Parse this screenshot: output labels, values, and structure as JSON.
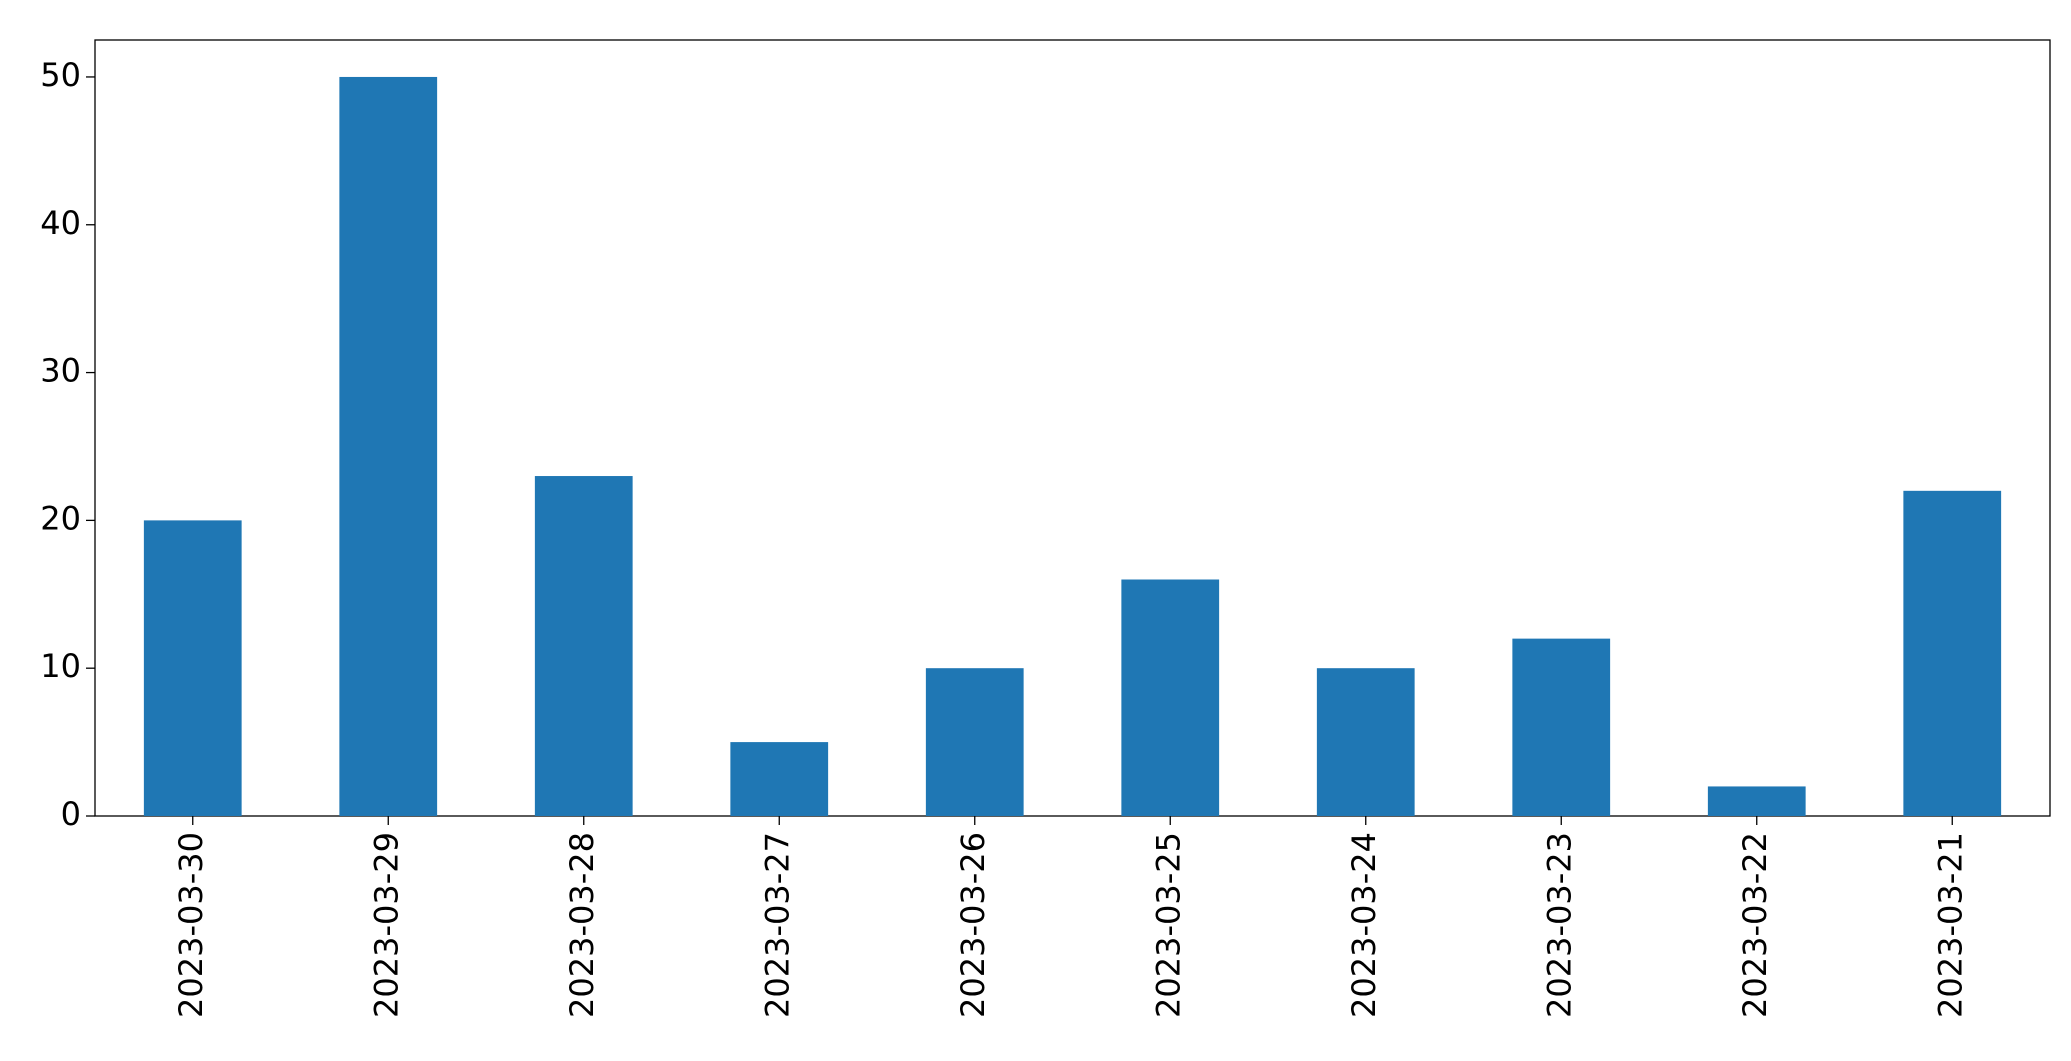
{
  "chart_data": {
    "type": "bar",
    "categories": [
      "2023-03-30",
      "2023-03-29",
      "2023-03-28",
      "2023-03-27",
      "2023-03-26",
      "2023-03-25",
      "2023-03-24",
      "2023-03-23",
      "2023-03-22",
      "2023-03-21"
    ],
    "values": [
      20,
      50,
      23,
      5,
      10,
      16,
      10,
      12,
      2,
      22
    ],
    "color": "#1f77b4",
    "ylim": [
      0,
      52.5
    ],
    "yticks": [
      0,
      10,
      20,
      30,
      40,
      50
    ],
    "grid": false
  }
}
